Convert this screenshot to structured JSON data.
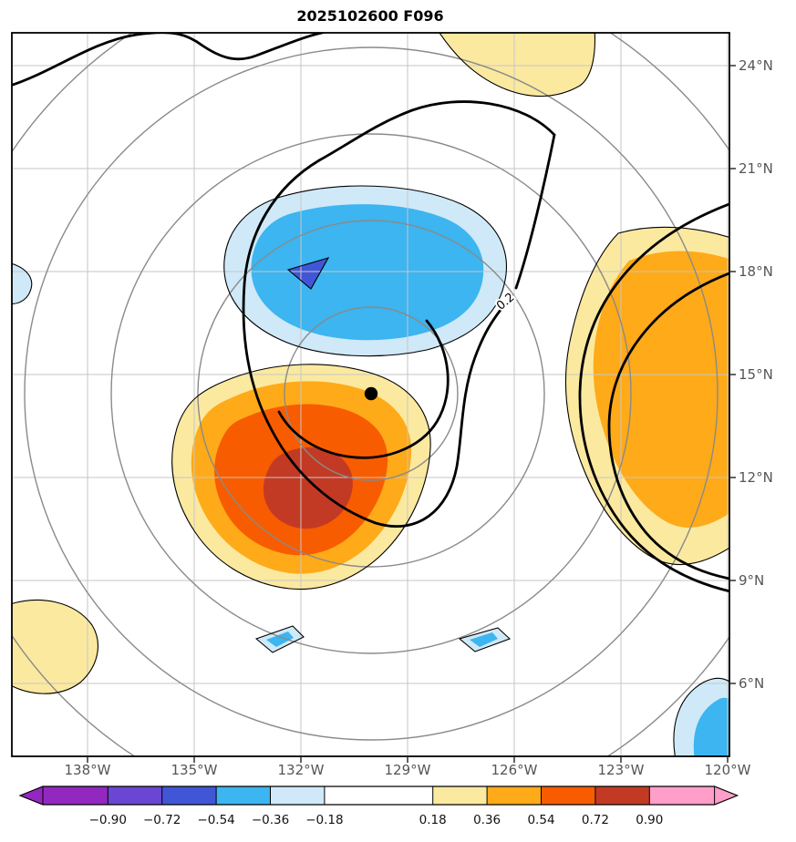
{
  "chart_data": {
    "type": "filled_contour_map",
    "title": "2025102600 F096",
    "x_axis": {
      "kind": "longitude",
      "ticks": [
        "138°W",
        "135°W",
        "132°W",
        "129°W",
        "126°W",
        "123°W",
        "120°W"
      ]
    },
    "y_axis": {
      "kind": "latitude",
      "position": "right",
      "ticks": [
        "24°N",
        "21°N",
        "18°N",
        "15°N",
        "12°N",
        "9°N",
        "6°N"
      ]
    },
    "grid": true,
    "marker": {
      "symbol": "black filled circle",
      "lon": "130.0°W",
      "lat": "14.4°N"
    },
    "range_rings": {
      "count": 5,
      "color": "#8a8a8a",
      "note": "concentric gray circles centered on the black dot"
    },
    "thick_contour": {
      "label": "0.2",
      "color": "#000000"
    },
    "palette": {
      "under": "#9328c0",
      "neg1_violet": "#6a46d2",
      "neg2_blue": "#4156d6",
      "neg3_sky": "#3cb5f0",
      "neg4_pale": "#cfe9f8",
      "zero_white": "#ffffff",
      "pos1_pale": "#fbe9a0",
      "pos2_orange": "#ffaa18",
      "pos3_red": "#f85c00",
      "pos4_brick": "#c33a24",
      "over": "#ff9ec8"
    },
    "colorbar": {
      "orientation": "horizontal",
      "extend": "both",
      "tick_labels": [
        "−0.90",
        "−0.72",
        "−0.54",
        "−0.36",
        "−0.18",
        "0.18",
        "0.36",
        "0.54",
        "0.72",
        "0.90"
      ],
      "levels": [
        -0.9,
        -0.72,
        -0.54,
        -0.36,
        -0.18,
        0.18,
        0.36,
        0.54,
        0.72,
        0.9
      ],
      "cell_colors": [
        "#6a46d2",
        "#4156d6",
        "#3cb5f0",
        "#cfe9f8",
        "#ffffff",
        "#fbe9a0",
        "#ffaa18",
        "#f85c00",
        "#c33a24"
      ],
      "under_color": "#9328c0",
      "over_color": "#ff9ec8"
    },
    "features": [
      "negative anomaly (to about −0.6): blue region centered near 131.5°W, 17.5°N",
      "positive anomaly (to about +0.9): orange/red maximum centered near 133°W, 12.5°N",
      "positive anomaly (to about +0.5): orange region along the east edge near 121°W, 12–18°N",
      "positive patch at the northern edge near 126.5°W, 24°N",
      "positive patch near the southwest corner around 138.5°W, 8°N",
      "small negative slivers near 132°W and 126.5°W at 7.5°N",
      "negative patch at the southeast corner near 120.5°W, 5–6°N",
      "small negative sliver at the west edge near 18°N",
      "thick black contour labeled 0.2 spirals around the storm center marker"
    ]
  }
}
